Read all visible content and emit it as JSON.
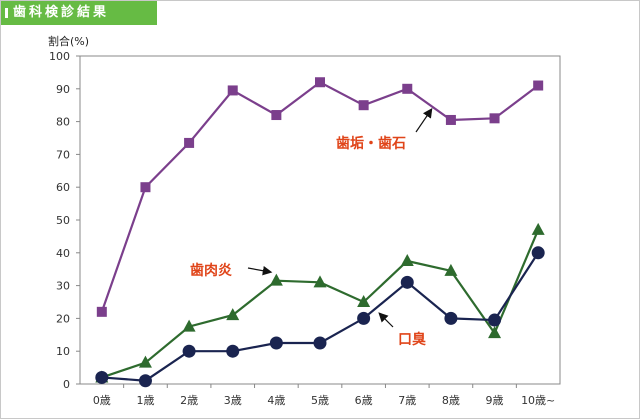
{
  "header": {
    "title": "歯科検診結果"
  },
  "chart_data": {
    "type": "line",
    "title": "",
    "xlabel": "",
    "ylabel": "割合(%)",
    "ylim": [
      0,
      100
    ],
    "yticks": [
      "0",
      "10",
      "20",
      "30",
      "40",
      "50",
      "60",
      "70",
      "80",
      "90",
      "100"
    ],
    "categories": [
      "0歳",
      "1歳",
      "2歳",
      "3歳",
      "4歳",
      "5歳",
      "6歳",
      "7歳",
      "8歳",
      "9歳",
      "10歳~"
    ],
    "grid": false,
    "legend": "none (inline annotations)",
    "series": [
      {
        "name": "歯垢・歯石",
        "color": "#7b3f8c",
        "marker": "square",
        "values": [
          22,
          60,
          73.5,
          89.5,
          82,
          92,
          85,
          90,
          80.5,
          81,
          91
        ]
      },
      {
        "name": "歯肉炎",
        "color": "#2e6b2e",
        "marker": "triangle",
        "values": [
          2,
          6.5,
          17.5,
          21,
          31.5,
          31,
          25,
          37.5,
          34.5,
          15.5,
          47
        ]
      },
      {
        "name": "口臭",
        "color": "#1a2450",
        "marker": "circle",
        "values": [
          2,
          1,
          10,
          10,
          12.5,
          12.5,
          20,
          31,
          20,
          19.5,
          40
        ]
      }
    ],
    "annotations": [
      {
        "text": "歯垢・歯石",
        "color": "#e0451a",
        "series": 0
      },
      {
        "text": "歯肉炎",
        "color": "#e0451a",
        "series": 1
      },
      {
        "text": "口臭",
        "color": "#e0451a",
        "series": 2
      }
    ]
  }
}
